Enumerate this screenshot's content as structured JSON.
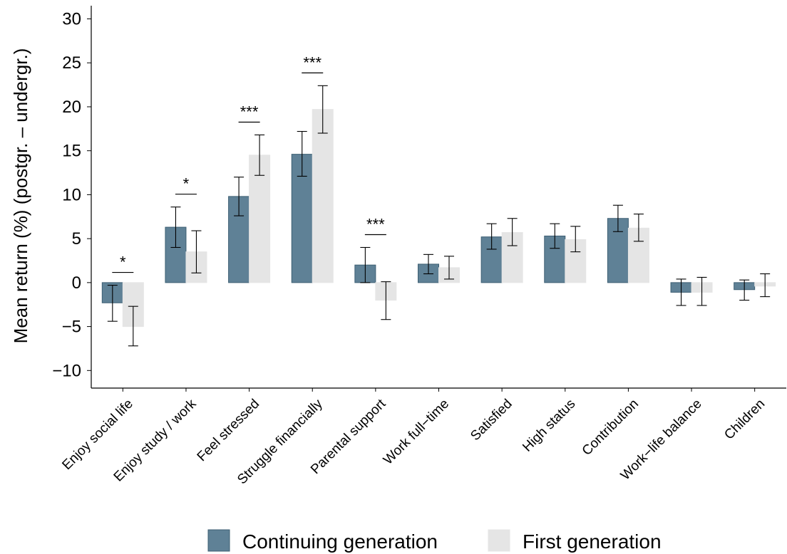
{
  "chart_data": {
    "type": "bar",
    "ylabel": "Mean return (%) (postgr. – undergr.)",
    "ylim": [
      -12,
      31.5
    ],
    "yticks": [
      -10,
      -5,
      0,
      5,
      10,
      15,
      20,
      25,
      30
    ],
    "ytick_labels": [
      "−10",
      "−5",
      "0",
      "5",
      "10",
      "15",
      "20",
      "25",
      "30"
    ],
    "categories": [
      "Enjoy social life",
      "Enjoy study / work",
      "Feel stressed",
      "Struggle financially",
      "Parental support",
      "Work full−time",
      "Satisfied",
      "High status",
      "Contribution",
      "Work−life balance",
      "Children"
    ],
    "series": [
      {
        "name": "Continuing generation",
        "color": "#5f8196",
        "edge": "#3d5f73",
        "values": [
          -2.3,
          6.3,
          9.8,
          14.6,
          2.0,
          2.1,
          5.2,
          5.3,
          7.3,
          -1.1,
          -0.8
        ],
        "err_low": [
          -4.4,
          4.0,
          7.6,
          12.1,
          0.0,
          1.0,
          3.8,
          3.9,
          5.8,
          -2.6,
          -2.0
        ],
        "err_high": [
          -0.3,
          8.6,
          12.0,
          17.2,
          4.0,
          3.2,
          6.7,
          6.7,
          8.8,
          0.4,
          0.3
        ]
      },
      {
        "name": "First generation",
        "color": "#e5e5e5",
        "edge": "#e5e5e5",
        "values": [
          -5.0,
          3.5,
          14.5,
          19.7,
          -2.0,
          1.7,
          5.7,
          4.9,
          6.2,
          -1.1,
          -0.4
        ],
        "err_low": [
          -7.2,
          1.1,
          12.2,
          17.0,
          -4.2,
          0.4,
          4.2,
          3.5,
          4.7,
          -2.6,
          -1.6
        ],
        "err_high": [
          -2.7,
          5.9,
          16.8,
          22.4,
          0.1,
          3.0,
          7.3,
          6.4,
          7.8,
          0.6,
          1.0
        ]
      }
    ],
    "significance": [
      {
        "category_index": 0,
        "label": "*"
      },
      {
        "category_index": 1,
        "label": "*"
      },
      {
        "category_index": 2,
        "label": "***"
      },
      {
        "category_index": 3,
        "label": "***"
      },
      {
        "category_index": 4,
        "label": "***"
      }
    ],
    "grid": false,
    "legend_position": "bottom"
  }
}
